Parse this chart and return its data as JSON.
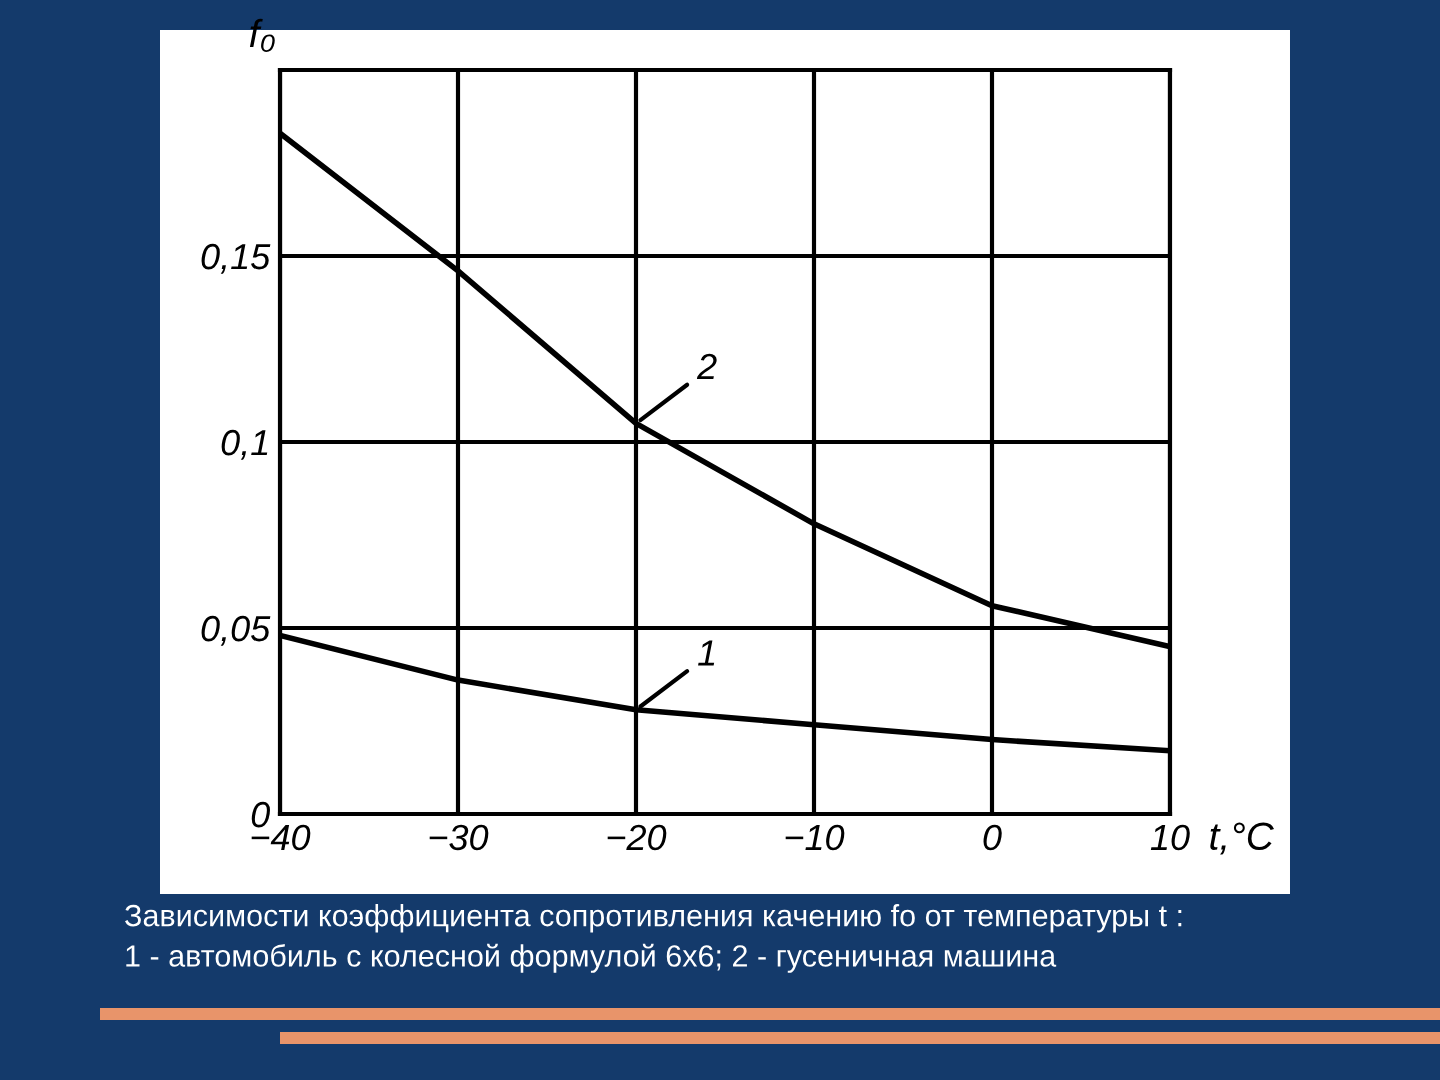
{
  "chart_data": {
    "type": "line",
    "xlabel": "t,°C",
    "ylabel": "f₀",
    "x": [
      -40,
      -30,
      -20,
      -10,
      0,
      10
    ],
    "series": [
      {
        "name": "1",
        "color": "#000000",
        "values": [
          0.048,
          0.036,
          0.028,
          0.024,
          0.02,
          0.017
        ]
      },
      {
        "name": "2",
        "color": "#000000",
        "values": [
          0.183,
          0.146,
          0.105,
          0.078,
          0.056,
          0.045
        ]
      }
    ],
    "xlim": [
      -40,
      10
    ],
    "ylim": [
      0,
      0.2
    ],
    "xticks": [
      {
        "value": -40,
        "label": "−40"
      },
      {
        "value": -30,
        "label": "−30"
      },
      {
        "value": -20,
        "label": "−20"
      },
      {
        "value": -10,
        "label": "−10"
      },
      0,
      10
    ],
    "yticks": [
      0,
      {
        "value": 0.05,
        "label": "0,05"
      },
      {
        "value": 0.1,
        "label": "0,1"
      },
      {
        "value": 0.15,
        "label": "0,15"
      }
    ],
    "grid": true,
    "marker": "none",
    "line_style": "solid",
    "legend": false,
    "annotations": [
      "Зависимости коэффициента сопротивления качению fо от температуры t :\n1 - автомобиль с колесной формулой 6x6; 2 - гусеничная машина"
    ]
  }
}
